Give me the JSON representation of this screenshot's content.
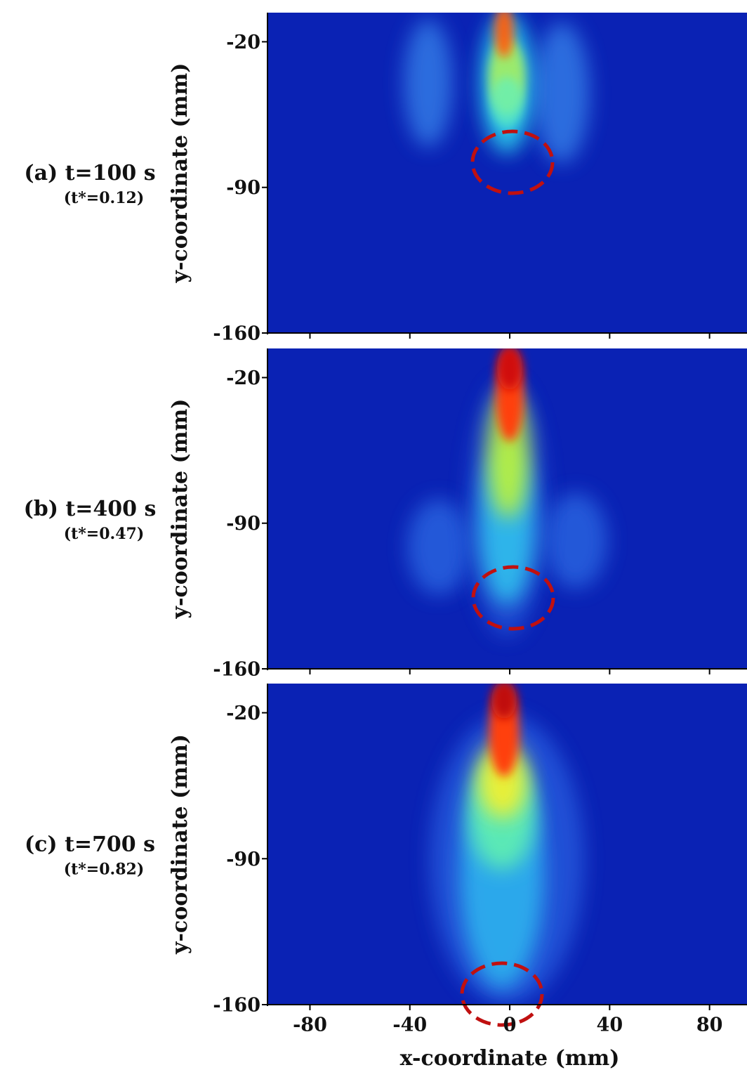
{
  "chart_data": [
    {
      "type": "image",
      "annotation": "(a) t=100 s",
      "subtitle": "(t*=0.12)",
      "ylabel": "y-coordinate (mm)",
      "xlim": [
        -97,
        95
      ],
      "ylim": [
        -160,
        -6
      ],
      "xticks": [
        -80,
        -40,
        0,
        40,
        80
      ],
      "xticklabels": false,
      "yticks": [
        -20,
        -90,
        -160
      ]
    },
    {
      "type": "image",
      "annotation": "(b) t=400 s",
      "subtitle": "(t*=0.47)",
      "ylabel": "y-coordinate (mm)",
      "xlim": [
        -97,
        95
      ],
      "ylim": [
        -160,
        -6
      ],
      "xticks": [
        -80,
        -40,
        0,
        40,
        80
      ],
      "xticklabels": false,
      "yticks": [
        -20,
        -90,
        -160
      ]
    },
    {
      "type": "image",
      "annotation": "(c) t=700 s",
      "subtitle": "(t*=0.82)",
      "ylabel": "y-coordinate (mm)",
      "xlabel": "x-coordinate (mm)",
      "xlim": [
        -97,
        95
      ],
      "ylim": [
        -160,
        -6
      ],
      "xticks": [
        -80,
        -40,
        0,
        40,
        80
      ],
      "xticklabels": true,
      "yticks": [
        -20,
        -90,
        -160
      ]
    }
  ]
}
